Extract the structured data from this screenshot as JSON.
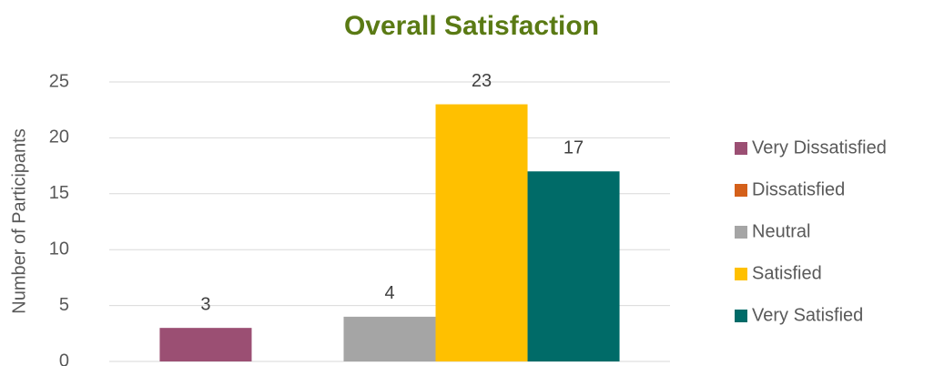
{
  "chart_data": {
    "type": "bar",
    "title": "Overall Satisfaction",
    "ylabel": "Number of Participants",
    "categories": [
      null
    ],
    "series": [
      {
        "name": "Very Dissatisfied",
        "color": "#9b4f73",
        "values": [
          3
        ]
      },
      {
        "name": "Dissatisfied",
        "color": "#d4601a",
        "values": [
          null
        ]
      },
      {
        "name": "Neutral",
        "color": "#a5a5a5",
        "values": [
          4
        ]
      },
      {
        "name": "Satisfied",
        "color": "#ffc000",
        "values": [
          23
        ]
      },
      {
        "name": "Very Satisfied",
        "color": "#006b68",
        "values": [
          17
        ]
      }
    ],
    "ylim": [
      0,
      25
    ],
    "yticks": [
      0,
      5,
      10,
      15,
      20,
      25
    ],
    "grid": true,
    "legend": "right"
  }
}
